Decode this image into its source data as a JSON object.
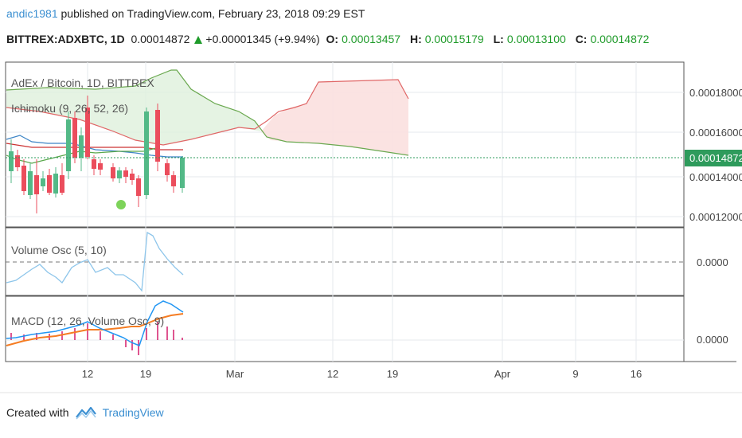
{
  "header": {
    "author": "andic1981",
    "published_text": " published on TradingView.com, February 23, 2018 09:29 EST"
  },
  "quote": {
    "symbol": "BITTREX:ADXBTC, 1D",
    "last": "0.00014872",
    "change": "+0.00001345 (+9.94%)",
    "o_label": "O:",
    "o": "0.00013457",
    "h_label": "H:",
    "h": "0.00015179",
    "l_label": "L:",
    "l": "0.00013100",
    "c_label": "C:",
    "c": "0.00014872"
  },
  "panes": {
    "main": {
      "title": "AdEx / Bitcoin, 1D, BITTREX",
      "indicator": "Ichimoku (9, 26, 52, 26)",
      "y_ticks": [
        "0.00018000",
        "0.00016000",
        "0.00014000",
        "0.00012000"
      ],
      "price_tag": "0.00014872"
    },
    "volume_osc": {
      "label": "Volume Osc (5, 10)",
      "y_tick": "0.0000"
    },
    "macd": {
      "label": "MACD (12, 26, Volume Osc, 9)",
      "y_tick": "0.0000"
    }
  },
  "x_axis": {
    "ticks": [
      "12",
      "19",
      "Mar",
      "12",
      "19",
      "Apr",
      "9",
      "16"
    ]
  },
  "footer": {
    "created_with": "Created with",
    "brand": "TradingView"
  },
  "colors": {
    "up": "#1f9b2a",
    "up_candle": "#53b987",
    "down_candle": "#eb4d5c",
    "cloud_green": "#dff0dc",
    "cloud_red": "#fbe0df",
    "span_a": "#6aa84f",
    "span_b": "#e06666",
    "tenkan": "#3d85c6",
    "kijun": "#cc3333",
    "lagging": "#5aa84c",
    "vol_osc": "#8dc5ea",
    "macd": "#2196f3",
    "signal": "#f57c22",
    "hist": "#d41c6b",
    "price_tag": "#2e9b5c",
    "link": "#3b8fd1"
  },
  "chart_data": {
    "type": "candlestick",
    "y_axis_ticks": [
      0.00018,
      0.00016,
      0.00014,
      0.00012
    ],
    "last_price": 0.00014872,
    "ohlc_last": {
      "open": 0.00013457,
      "high": 0.00015179,
      "low": 0.000131,
      "close": 0.00014872
    },
    "x_axis_ticks": [
      "12",
      "19",
      "Mar",
      "12",
      "19",
      "Apr",
      "9",
      "16"
    ]
  }
}
